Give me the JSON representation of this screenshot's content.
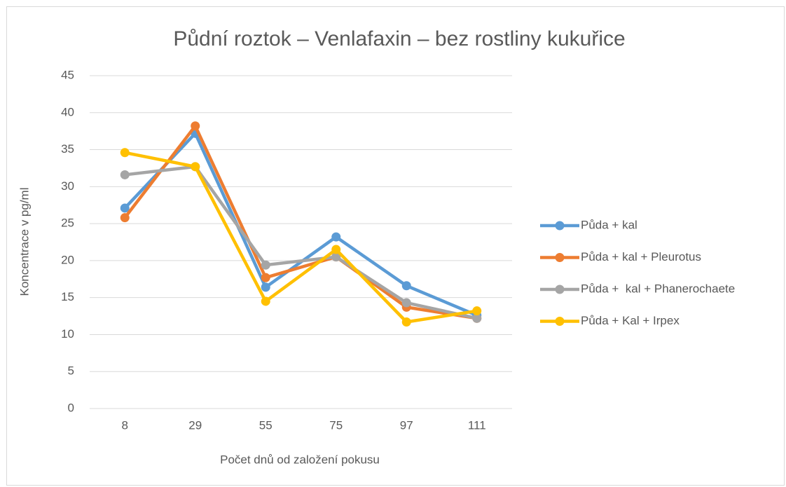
{
  "chart_data": {
    "type": "line",
    "title": "Půdní roztok – Venlafaxin – bez rostliny kukuřice",
    "x_label": "Počet dnů od založení pokusu",
    "y_label": "Koncentrace v pg/ml",
    "categories": [
      "8",
      "29",
      "55",
      "75",
      "97",
      "111"
    ],
    "series": [
      {
        "name": "Půda + kal",
        "color": "#5b9bd5",
        "values": [
          27.1,
          37.2,
          16.4,
          23.2,
          16.6,
          12.6
        ]
      },
      {
        "name": "Půda + kal + Pleurotus",
        "color": "#ed7d31",
        "values": [
          25.8,
          38.2,
          17.7,
          20.5,
          13.7,
          12.2
        ]
      },
      {
        "name": "Půda +  kal + Phanerochaete",
        "color": "#a5a5a5",
        "values": [
          31.6,
          32.7,
          19.4,
          20.5,
          14.3,
          12.2
        ]
      },
      {
        "name": "Půda + Kal + Irpex",
        "color": "#ffc000",
        "values": [
          34.6,
          32.7,
          14.5,
          21.5,
          11.7,
          13.2
        ]
      }
    ],
    "ylim": [
      0,
      45
    ],
    "yticks": [
      0,
      5,
      10,
      15,
      20,
      25,
      30,
      35,
      40,
      45
    ],
    "grid": true,
    "legend": "right"
  }
}
